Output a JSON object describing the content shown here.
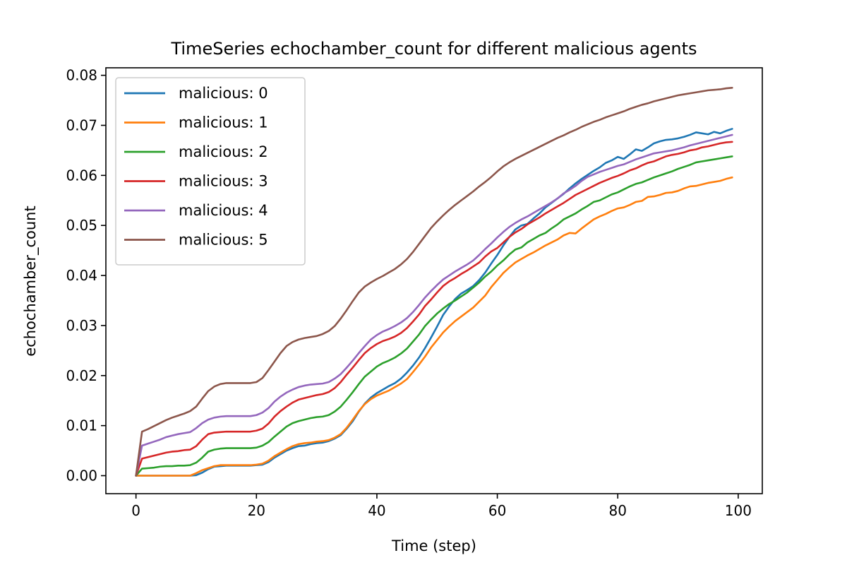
{
  "chart_data": {
    "type": "line",
    "title": "TimeSeries echochamber_count for different malicious agents",
    "xlabel": "Time (step)",
    "ylabel": "echochamber_count",
    "xlim": [
      -5,
      104
    ],
    "ylim": [
      -0.0036,
      0.0815
    ],
    "xticks": [
      0,
      20,
      40,
      60,
      80,
      100
    ],
    "xtick_labels": [
      "0",
      "20",
      "40",
      "60",
      "80",
      "100"
    ],
    "yticks": [
      0.0,
      0.01,
      0.02,
      0.03,
      0.04,
      0.05,
      0.06,
      0.07,
      0.08
    ],
    "ytick_labels": [
      "0.00",
      "0.01",
      "0.02",
      "0.03",
      "0.04",
      "0.05",
      "0.06",
      "0.07",
      "0.08"
    ],
    "grid": false,
    "legend_position": "top-left",
    "x": [
      0,
      1,
      2,
      3,
      4,
      5,
      6,
      7,
      8,
      9,
      10,
      11,
      12,
      13,
      14,
      15,
      16,
      17,
      18,
      19,
      20,
      21,
      22,
      23,
      24,
      25,
      26,
      27,
      28,
      29,
      30,
      31,
      32,
      33,
      34,
      35,
      36,
      37,
      38,
      39,
      40,
      41,
      42,
      43,
      44,
      45,
      46,
      47,
      48,
      49,
      50,
      51,
      52,
      53,
      54,
      55,
      56,
      57,
      58,
      59,
      60,
      61,
      62,
      63,
      64,
      65,
      66,
      67,
      68,
      69,
      70,
      71,
      72,
      73,
      74,
      75,
      76,
      77,
      78,
      79,
      80,
      81,
      82,
      83,
      84,
      85,
      86,
      87,
      88,
      89,
      90,
      91,
      92,
      93,
      94,
      95,
      96,
      97,
      98,
      99
    ],
    "series": [
      {
        "name": "malicious: 0",
        "color": "#1f77b4",
        "values": [
          0.0,
          0.0,
          0.0,
          0.0,
          0.0,
          0.0,
          0.0,
          0.0,
          0.0,
          0.0,
          0.0001,
          0.0006,
          0.0013,
          0.0018,
          0.0019,
          0.002,
          0.002,
          0.002,
          0.002,
          0.002,
          0.0021,
          0.0022,
          0.0027,
          0.0036,
          0.0043,
          0.005,
          0.0055,
          0.0059,
          0.006,
          0.0063,
          0.0065,
          0.0066,
          0.0069,
          0.0074,
          0.0081,
          0.0094,
          0.0109,
          0.0128,
          0.0144,
          0.0156,
          0.0165,
          0.0172,
          0.0179,
          0.0185,
          0.0194,
          0.0206,
          0.022,
          0.0236,
          0.0255,
          0.0276,
          0.0298,
          0.0321,
          0.0338,
          0.0353,
          0.0364,
          0.0371,
          0.0379,
          0.0391,
          0.0406,
          0.0424,
          0.0441,
          0.046,
          0.0477,
          0.0492,
          0.05,
          0.0503,
          0.0514,
          0.0524,
          0.0536,
          0.0545,
          0.0554,
          0.0563,
          0.0574,
          0.0584,
          0.0593,
          0.0601,
          0.0609,
          0.0616,
          0.0625,
          0.063,
          0.0637,
          0.0633,
          0.0642,
          0.0652,
          0.0649,
          0.0656,
          0.0664,
          0.0668,
          0.0671,
          0.0672,
          0.0674,
          0.0677,
          0.0681,
          0.0686,
          0.0684,
          0.0682,
          0.0687,
          0.0684,
          0.0689,
          0.0693
        ]
      },
      {
        "name": "malicious: 1",
        "color": "#ff7f0e",
        "values": [
          0.0,
          0.0,
          0.0,
          0.0,
          0.0,
          0.0,
          0.0,
          0.0,
          0.0,
          0.0,
          0.0005,
          0.0011,
          0.0015,
          0.0019,
          0.0021,
          0.0021,
          0.0021,
          0.0021,
          0.0021,
          0.0021,
          0.0022,
          0.0024,
          0.003,
          0.0039,
          0.0046,
          0.0053,
          0.0059,
          0.0063,
          0.0065,
          0.0066,
          0.0068,
          0.0069,
          0.0071,
          0.0076,
          0.0083,
          0.0096,
          0.0112,
          0.0129,
          0.0143,
          0.0153,
          0.016,
          0.0165,
          0.017,
          0.0177,
          0.0184,
          0.0193,
          0.0207,
          0.0222,
          0.0238,
          0.0256,
          0.0271,
          0.0286,
          0.0298,
          0.0309,
          0.0318,
          0.0327,
          0.0336,
          0.0348,
          0.036,
          0.0377,
          0.0391,
          0.0405,
          0.0416,
          0.0426,
          0.0433,
          0.044,
          0.0446,
          0.0453,
          0.046,
          0.0466,
          0.0472,
          0.048,
          0.0485,
          0.0484,
          0.0494,
          0.0503,
          0.0512,
          0.0518,
          0.0523,
          0.0529,
          0.0534,
          0.0536,
          0.0541,
          0.0547,
          0.0549,
          0.0557,
          0.0558,
          0.0561,
          0.0565,
          0.0566,
          0.0569,
          0.0574,
          0.0578,
          0.0579,
          0.0582,
          0.0585,
          0.0587,
          0.0589,
          0.0593,
          0.0596
        ]
      },
      {
        "name": "malicious: 2",
        "color": "#2ca02c",
        "values": [
          0.0,
          0.0014,
          0.0015,
          0.0016,
          0.0018,
          0.0019,
          0.0019,
          0.002,
          0.002,
          0.0021,
          0.0026,
          0.0036,
          0.0048,
          0.0052,
          0.0054,
          0.0055,
          0.0055,
          0.0055,
          0.0055,
          0.0055,
          0.0056,
          0.006,
          0.0067,
          0.0078,
          0.0088,
          0.0098,
          0.0105,
          0.0109,
          0.0112,
          0.0115,
          0.0117,
          0.0118,
          0.0121,
          0.0128,
          0.0138,
          0.0152,
          0.0167,
          0.0183,
          0.0198,
          0.0208,
          0.0218,
          0.0225,
          0.023,
          0.0236,
          0.0244,
          0.0254,
          0.0268,
          0.0282,
          0.0299,
          0.0312,
          0.0324,
          0.0334,
          0.0343,
          0.035,
          0.0358,
          0.0366,
          0.0376,
          0.0386,
          0.0398,
          0.0408,
          0.042,
          0.043,
          0.0442,
          0.0452,
          0.0456,
          0.0466,
          0.0473,
          0.048,
          0.0485,
          0.0494,
          0.0502,
          0.0512,
          0.0518,
          0.0524,
          0.0532,
          0.0539,
          0.0547,
          0.055,
          0.0556,
          0.0562,
          0.0566,
          0.0572,
          0.0578,
          0.0583,
          0.0586,
          0.0591,
          0.0596,
          0.06,
          0.0604,
          0.0608,
          0.0613,
          0.0617,
          0.0621,
          0.0626,
          0.0628,
          0.063,
          0.0632,
          0.0634,
          0.0636,
          0.0638
        ]
      },
      {
        "name": "malicious: 3",
        "color": "#d62728",
        "values": [
          0.0,
          0.0034,
          0.0037,
          0.004,
          0.0043,
          0.0046,
          0.0048,
          0.0049,
          0.0051,
          0.0052,
          0.0059,
          0.0072,
          0.0083,
          0.0086,
          0.0087,
          0.0088,
          0.0088,
          0.0088,
          0.0088,
          0.0088,
          0.009,
          0.0094,
          0.0104,
          0.0118,
          0.0129,
          0.0138,
          0.0146,
          0.0152,
          0.0155,
          0.0158,
          0.0161,
          0.0163,
          0.0167,
          0.0175,
          0.0187,
          0.0202,
          0.0216,
          0.0231,
          0.0245,
          0.0255,
          0.0263,
          0.0269,
          0.0273,
          0.0278,
          0.0285,
          0.0295,
          0.0308,
          0.0322,
          0.0339,
          0.0352,
          0.0366,
          0.0379,
          0.0388,
          0.0395,
          0.0403,
          0.041,
          0.0418,
          0.0426,
          0.0438,
          0.0448,
          0.0455,
          0.0466,
          0.0477,
          0.0486,
          0.0493,
          0.0502,
          0.0509,
          0.0516,
          0.0524,
          0.0531,
          0.0538,
          0.0545,
          0.0553,
          0.0561,
          0.0567,
          0.0573,
          0.0579,
          0.0585,
          0.059,
          0.0595,
          0.0599,
          0.0604,
          0.061,
          0.0614,
          0.062,
          0.0625,
          0.0628,
          0.0633,
          0.0638,
          0.0641,
          0.0643,
          0.0646,
          0.065,
          0.0652,
          0.0656,
          0.0658,
          0.0661,
          0.0664,
          0.0666,
          0.0667
        ]
      },
      {
        "name": "malicious: 4",
        "color": "#9467bd",
        "values": [
          0.0,
          0.006,
          0.0064,
          0.0068,
          0.0072,
          0.0077,
          0.008,
          0.0083,
          0.0085,
          0.0087,
          0.0095,
          0.0105,
          0.0112,
          0.0116,
          0.0118,
          0.0119,
          0.0119,
          0.0119,
          0.0119,
          0.0119,
          0.0121,
          0.0126,
          0.0135,
          0.0148,
          0.0158,
          0.0166,
          0.0172,
          0.0177,
          0.018,
          0.0182,
          0.0183,
          0.0184,
          0.0187,
          0.0194,
          0.0203,
          0.0216,
          0.023,
          0.0245,
          0.0259,
          0.0272,
          0.0281,
          0.0288,
          0.0293,
          0.0299,
          0.0306,
          0.0315,
          0.0327,
          0.0341,
          0.0356,
          0.0369,
          0.0381,
          0.0392,
          0.04,
          0.0408,
          0.0415,
          0.0422,
          0.043,
          0.0441,
          0.0453,
          0.0464,
          0.0476,
          0.0487,
          0.0497,
          0.0505,
          0.0512,
          0.0518,
          0.0525,
          0.0532,
          0.0539,
          0.0546,
          0.0554,
          0.0564,
          0.0571,
          0.0579,
          0.0589,
          0.0597,
          0.0602,
          0.0607,
          0.0611,
          0.0615,
          0.0619,
          0.0622,
          0.0627,
          0.0632,
          0.0636,
          0.064,
          0.0644,
          0.0646,
          0.0648,
          0.065,
          0.0653,
          0.0656,
          0.066,
          0.0663,
          0.0666,
          0.0669,
          0.0672,
          0.0675,
          0.0678,
          0.0681
        ]
      },
      {
        "name": "malicious: 5",
        "color": "#8c564b",
        "values": [
          0.0,
          0.0088,
          0.0093,
          0.0099,
          0.0105,
          0.0111,
          0.0116,
          0.012,
          0.0124,
          0.0129,
          0.0138,
          0.0154,
          0.0169,
          0.0178,
          0.0183,
          0.0185,
          0.0185,
          0.0185,
          0.0185,
          0.0185,
          0.0187,
          0.0195,
          0.0211,
          0.0228,
          0.0245,
          0.0259,
          0.0267,
          0.0272,
          0.0275,
          0.0277,
          0.0279,
          0.0283,
          0.0289,
          0.0299,
          0.0314,
          0.0331,
          0.0349,
          0.0366,
          0.0378,
          0.0386,
          0.0393,
          0.0399,
          0.0406,
          0.0413,
          0.0422,
          0.0433,
          0.0447,
          0.0463,
          0.0479,
          0.0495,
          0.0508,
          0.052,
          0.0531,
          0.0541,
          0.055,
          0.0559,
          0.0568,
          0.0578,
          0.0587,
          0.0597,
          0.0608,
          0.0618,
          0.0626,
          0.0633,
          0.0639,
          0.0645,
          0.0651,
          0.0657,
          0.0663,
          0.0669,
          0.0675,
          0.068,
          0.0686,
          0.0691,
          0.0697,
          0.0702,
          0.0707,
          0.0711,
          0.0716,
          0.072,
          0.0724,
          0.0728,
          0.0733,
          0.0737,
          0.0741,
          0.0744,
          0.0748,
          0.0751,
          0.0754,
          0.0757,
          0.076,
          0.0762,
          0.0764,
          0.0766,
          0.0768,
          0.077,
          0.0771,
          0.0772,
          0.0774,
          0.0775
        ]
      }
    ]
  }
}
